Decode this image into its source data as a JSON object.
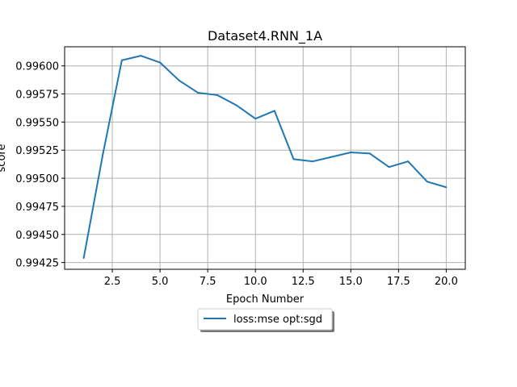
{
  "chart_data": {
    "type": "line",
    "title": "Dataset4.RNN_1A",
    "xlabel": "Epoch Number",
    "ylabel": "score",
    "xlim": [
      0,
      21
    ],
    "ylim": [
      0.99419,
      0.99617
    ],
    "grid": true,
    "legend_position": "below-center",
    "x_ticks": [
      2.5,
      5.0,
      7.5,
      10.0,
      12.5,
      15.0,
      17.5,
      20.0
    ],
    "x_tick_labels": [
      "2.5",
      "5.0",
      "7.5",
      "10.0",
      "12.5",
      "15.0",
      "17.5",
      "20.0"
    ],
    "y_ticks": [
      0.99425,
      0.9945,
      0.99475,
      0.995,
      0.99525,
      0.9955,
      0.99575,
      0.996
    ],
    "y_tick_labels": [
      "0.99425",
      "0.99450",
      "0.99475",
      "0.99500",
      "0.99525",
      "0.99550",
      "0.99575",
      "0.99600"
    ],
    "x": [
      1,
      2,
      3,
      4,
      5,
      6,
      7,
      8,
      9,
      10,
      11,
      12,
      13,
      14,
      15,
      16,
      17,
      18,
      19,
      20
    ],
    "series": [
      {
        "name": "loss:mse opt:sgd",
        "color": "#1f77b4",
        "values": [
          0.99429,
          0.99521,
          0.99605,
          0.99609,
          0.99603,
          0.99587,
          0.99576,
          0.99574,
          0.99565,
          0.99553,
          0.9956,
          0.99517,
          0.99515,
          0.99519,
          0.99523,
          0.99522,
          0.9951,
          0.99515,
          0.99497,
          0.99492
        ]
      }
    ]
  }
}
